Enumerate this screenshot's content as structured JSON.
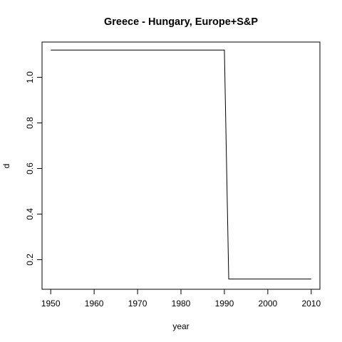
{
  "chart_data": {
    "type": "line",
    "title": "Greece - Hungary, Europe+S&P",
    "xlabel": "year",
    "ylabel": "d",
    "xlim": [
      1948,
      2012
    ],
    "ylim": [
      0.07,
      1.155
    ],
    "x_ticks": [
      "1950",
      "1960",
      "1970",
      "1980",
      "1990",
      "2000",
      "2010"
    ],
    "y_ticks": [
      "0.2",
      "0.4",
      "0.6",
      "0.8",
      "1.0"
    ],
    "x_tick_values": [
      1950,
      1960,
      1970,
      1980,
      1990,
      2000,
      2010
    ],
    "y_tick_values": [
      0.2,
      0.4,
      0.6,
      0.8,
      1.0
    ],
    "series": [
      {
        "x": [
          1950,
          1951,
          1952,
          1953,
          1954,
          1955,
          1956,
          1957,
          1958,
          1959,
          1960,
          1961,
          1962,
          1963,
          1964,
          1965,
          1966,
          1967,
          1968,
          1969,
          1970,
          1971,
          1972,
          1973,
          1974,
          1975,
          1976,
          1977,
          1978,
          1979,
          1980,
          1981,
          1982,
          1983,
          1984,
          1985,
          1986,
          1987,
          1988,
          1989,
          1990,
          1991,
          1992,
          1993,
          1994,
          1995,
          1996,
          1997,
          1998,
          1999,
          2000,
          2001,
          2002,
          2003,
          2004,
          2005,
          2006,
          2007,
          2008,
          2009,
          2010
        ],
        "y": [
          1.12,
          1.12,
          1.12,
          1.12,
          1.12,
          1.12,
          1.12,
          1.12,
          1.12,
          1.12,
          1.12,
          1.12,
          1.12,
          1.12,
          1.12,
          1.12,
          1.12,
          1.12,
          1.12,
          1.12,
          1.12,
          1.12,
          1.12,
          1.12,
          1.12,
          1.12,
          1.12,
          1.12,
          1.12,
          1.12,
          1.12,
          1.12,
          1.12,
          1.12,
          1.12,
          1.12,
          1.12,
          1.12,
          1.12,
          1.12,
          1.12,
          0.115,
          0.115,
          0.115,
          0.115,
          0.115,
          0.115,
          0.115,
          0.115,
          0.115,
          0.115,
          0.115,
          0.115,
          0.115,
          0.115,
          0.115,
          0.115,
          0.115,
          0.115,
          0.115,
          0.115
        ]
      }
    ]
  }
}
